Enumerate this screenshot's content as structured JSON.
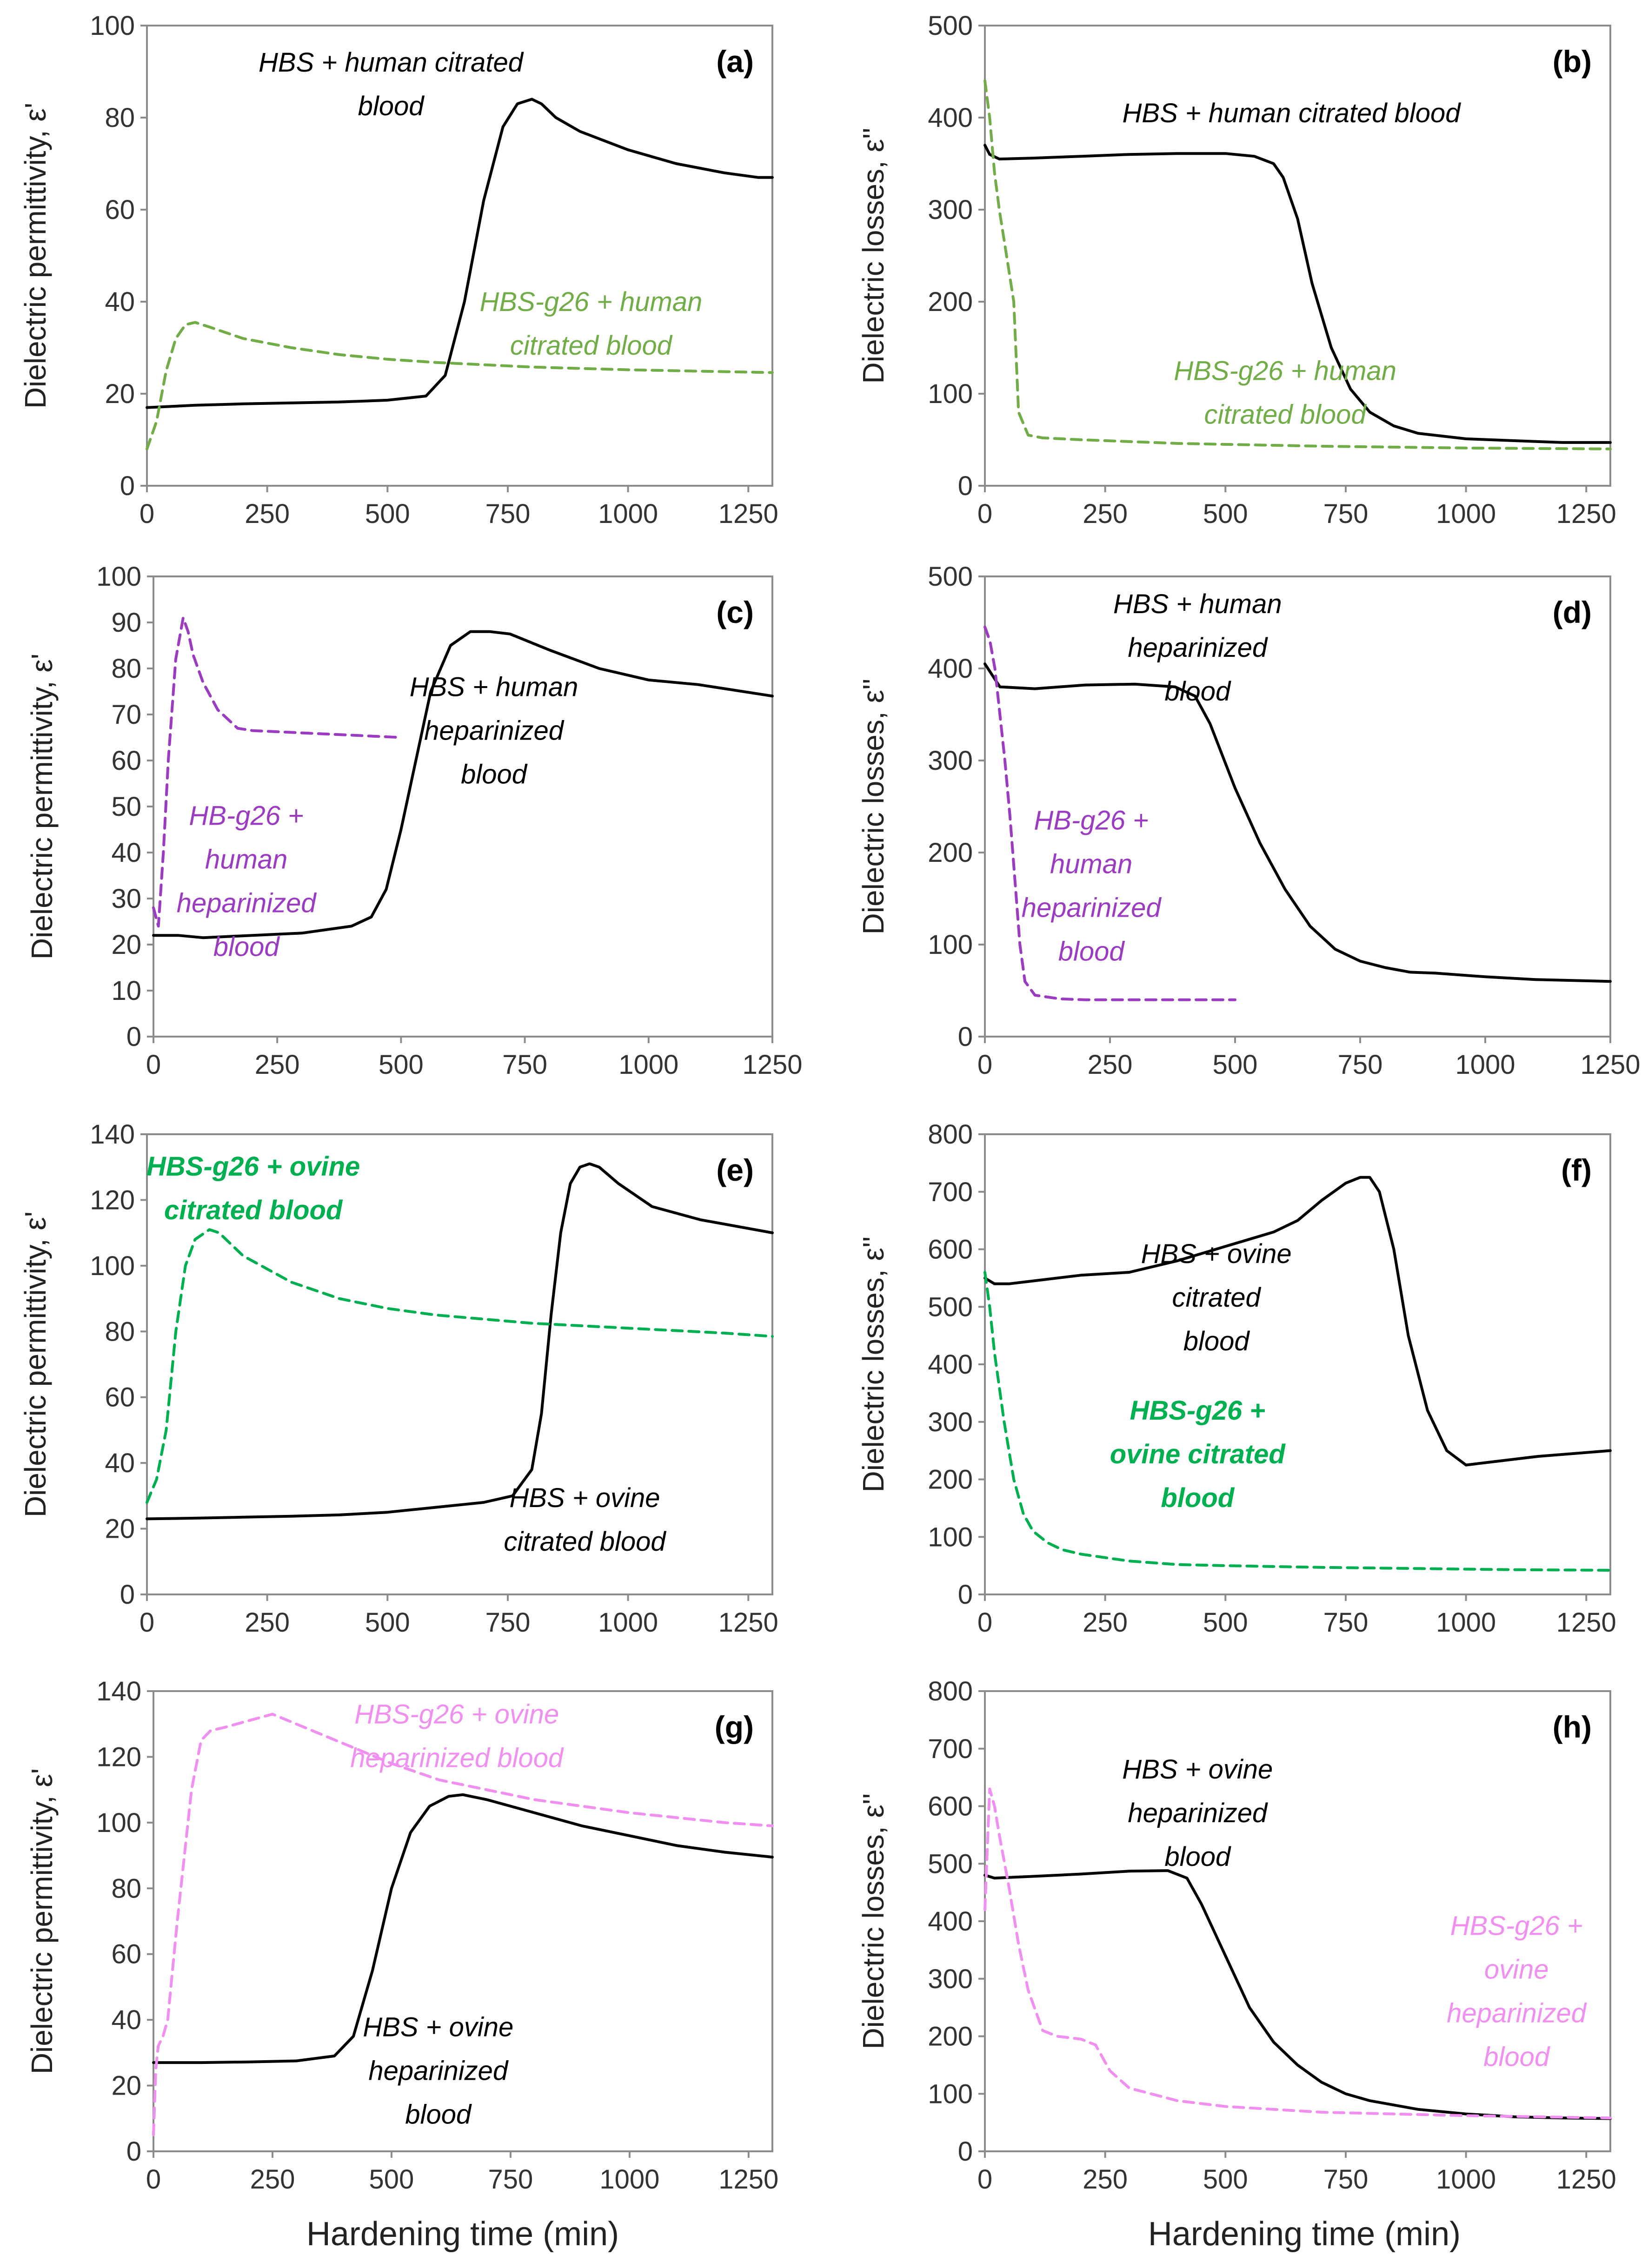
{
  "figure": {
    "xlabel_left": "Hardening time (min)",
    "xlabel_right": "Hardening time (min)"
  },
  "chart_data": [
    {
      "id": "a",
      "type": "line",
      "panel_label": "(a)",
      "ylabel": "Dielectric permittivity, ε'",
      "xlim": [
        0,
        1300
      ],
      "xticks": [
        0,
        250,
        500,
        750,
        1000,
        1250
      ],
      "ylim": [
        0,
        100
      ],
      "yticks": [
        0,
        20,
        40,
        60,
        80,
        100
      ],
      "series": [
        {
          "name": "HBS + human citrated blood",
          "color": "#000000",
          "dashed": false,
          "x": [
            0,
            100,
            200,
            300,
            400,
            500,
            580,
            620,
            660,
            700,
            740,
            770,
            800,
            820,
            850,
            900,
            1000,
            1100,
            1200,
            1270,
            1300
          ],
          "y": [
            17,
            17.5,
            17.8,
            18,
            18.2,
            18.6,
            19.5,
            24,
            40,
            62,
            78,
            83,
            84,
            83,
            80,
            77,
            73,
            70,
            68,
            67,
            67
          ]
        },
        {
          "name": "HBS-g26 + human citrated blood",
          "color": "#70ad47",
          "dashed": true,
          "x": [
            0,
            20,
            40,
            60,
            80,
            100,
            130,
            200,
            300,
            400,
            500,
            600,
            800,
            1000,
            1200,
            1300
          ],
          "y": [
            8,
            14,
            25,
            32,
            35,
            35.5,
            34.5,
            32,
            30,
            28.5,
            27.5,
            26.8,
            25.8,
            25.2,
            24.8,
            24.6
          ]
        }
      ],
      "annotations": [
        {
          "lines": [
            "HBS + human citrated",
            "blood"
          ],
          "color": "#000000"
        },
        {
          "lines": [
            "HBS-g26 + human",
            "citrated blood"
          ],
          "color": "#70ad47"
        }
      ]
    },
    {
      "id": "b",
      "type": "line",
      "panel_label": "(b)",
      "ylabel": "Dielectric losses, ε''",
      "xlim": [
        0,
        1300
      ],
      "xticks": [
        0,
        250,
        500,
        750,
        1000,
        1250
      ],
      "ylim": [
        0,
        500
      ],
      "yticks": [
        0,
        100,
        200,
        300,
        400,
        500
      ],
      "series": [
        {
          "name": "HBS + human citrated blood",
          "color": "#000000",
          "dashed": false,
          "x": [
            0,
            10,
            30,
            100,
            200,
            300,
            400,
            500,
            560,
            600,
            620,
            650,
            680,
            720,
            760,
            800,
            850,
            900,
            1000,
            1100,
            1200,
            1300
          ],
          "y": [
            370,
            360,
            355,
            356,
            358,
            360,
            361,
            361,
            358,
            350,
            335,
            290,
            220,
            150,
            105,
            80,
            65,
            57,
            51,
            49,
            47,
            47
          ]
        },
        {
          "name": "HBS-g26 + human citrated blood",
          "color": "#70ad47",
          "dashed": true,
          "x": [
            0,
            10,
            20,
            30,
            45,
            60,
            70,
            90,
            120,
            200,
            400,
            700,
            1000,
            1300
          ],
          "y": [
            440,
            400,
            340,
            300,
            250,
            200,
            80,
            55,
            52,
            50,
            46,
            43,
            41,
            40
          ]
        }
      ],
      "annotations": [
        {
          "lines": [
            "HBS + human citrated blood"
          ],
          "color": "#000000"
        },
        {
          "lines": [
            "HBS-g26 + human",
            "citrated blood"
          ],
          "color": "#70ad47"
        }
      ]
    },
    {
      "id": "c",
      "type": "line",
      "panel_label": "(c)",
      "ylabel": "Dielectric permittivity, ε'",
      "xlim": [
        0,
        1250
      ],
      "xticks": [
        0,
        250,
        500,
        750,
        1000,
        1250
      ],
      "ylim": [
        0,
        100
      ],
      "yticks": [
        0,
        10,
        20,
        30,
        40,
        50,
        60,
        70,
        80,
        90,
        100
      ],
      "series": [
        {
          "name": "HBS + human heparinized blood",
          "color": "#000000",
          "dashed": false,
          "x": [
            0,
            50,
            100,
            200,
            300,
            400,
            440,
            470,
            500,
            530,
            560,
            600,
            640,
            680,
            720,
            800,
            900,
            1000,
            1100,
            1250
          ],
          "y": [
            22,
            22,
            21.5,
            22,
            22.5,
            24,
            26,
            32,
            45,
            60,
            75,
            85,
            88,
            88,
            87.5,
            84,
            80,
            77.5,
            76.5,
            74
          ]
        },
        {
          "name": "HB-g26 + human heparinized blood",
          "color": "#9a3bc1",
          "dashed": true,
          "x": [
            0,
            10,
            20,
            30,
            45,
            60,
            70,
            80,
            100,
            130,
            170,
            200,
            300,
            400,
            500
          ],
          "y": [
            28,
            24,
            40,
            60,
            82,
            91,
            88,
            83,
            77,
            71,
            67,
            66.5,
            66,
            65.5,
            65
          ]
        }
      ],
      "annotations": [
        {
          "lines": [
            "HBS + human",
            "heparinized",
            "blood"
          ],
          "color": "#000000"
        },
        {
          "lines": [
            "HB-g26 +",
            "human",
            "heparinized",
            "blood"
          ],
          "color": "#9a3bc1"
        }
      ]
    },
    {
      "id": "d",
      "type": "line",
      "panel_label": "(d)",
      "ylabel": "Dielectric losses, ε''",
      "xlim": [
        0,
        1250
      ],
      "xticks": [
        0,
        250,
        500,
        750,
        1000,
        1250
      ],
      "ylim": [
        0,
        500
      ],
      "yticks": [
        0,
        100,
        200,
        300,
        400,
        500
      ],
      "series": [
        {
          "name": "HBS + human heparinized blood",
          "color": "#000000",
          "dashed": false,
          "x": [
            0,
            30,
            100,
            200,
            300,
            380,
            420,
            450,
            500,
            550,
            600,
            650,
            700,
            750,
            800,
            850,
            900,
            1000,
            1100,
            1250
          ],
          "y": [
            405,
            380,
            378,
            382,
            383,
            380,
            370,
            340,
            270,
            210,
            160,
            120,
            95,
            82,
            75,
            70,
            69,
            65,
            62,
            60
          ]
        },
        {
          "name": "HB-g26 + human heparinized blood",
          "color": "#9a3bc1",
          "dashed": true,
          "x": [
            0,
            10,
            20,
            30,
            40,
            50,
            60,
            70,
            80,
            100,
            150,
            200,
            300,
            400,
            500
          ],
          "y": [
            445,
            430,
            400,
            350,
            300,
            240,
            170,
            100,
            60,
            45,
            41,
            40,
            40,
            40,
            40
          ]
        }
      ],
      "annotations": [
        {
          "lines": [
            "HBS + human",
            "heparinized",
            "blood"
          ],
          "color": "#000000"
        },
        {
          "lines": [
            "HB-g26 +",
            "human",
            "heparinized",
            "blood"
          ],
          "color": "#9a3bc1"
        }
      ]
    },
    {
      "id": "e",
      "type": "line",
      "panel_label": "(e)",
      "ylabel": "Dielectric permittivity, ε'",
      "xlim": [
        0,
        1300
      ],
      "xticks": [
        0,
        250,
        500,
        750,
        1000,
        1250
      ],
      "ylim": [
        0,
        140
      ],
      "yticks": [
        0,
        20,
        40,
        60,
        80,
        100,
        120,
        140
      ],
      "series": [
        {
          "name": "HBS + ovine citrated blood",
          "color": "#000000",
          "dashed": false,
          "x": [
            0,
            100,
            200,
            300,
            400,
            500,
            600,
            700,
            760,
            800,
            820,
            840,
            860,
            880,
            900,
            920,
            940,
            980,
            1050,
            1150,
            1300
          ],
          "y": [
            23,
            23.2,
            23.5,
            23.8,
            24.2,
            25,
            26.5,
            28,
            30,
            38,
            55,
            85,
            110,
            125,
            130,
            131,
            130,
            125,
            118,
            114,
            110
          ]
        },
        {
          "name": "HBS-g26 + ovine citrated blood",
          "color": "#00b050",
          "dashed": true,
          "x": [
            0,
            20,
            40,
            60,
            80,
            100,
            130,
            150,
            200,
            300,
            400,
            500,
            600,
            800,
            1000,
            1200,
            1300
          ],
          "y": [
            28,
            35,
            50,
            80,
            100,
            108,
            111,
            110,
            103,
            95,
            90,
            87,
            85,
            82.5,
            81,
            79.5,
            78.5
          ]
        }
      ],
      "annotations": [
        {
          "lines": [
            "HBS-g26 + ovine",
            "citrated blood"
          ],
          "color": "#00b050"
        },
        {
          "lines": [
            "HBS + ovine",
            "citrated blood"
          ],
          "color": "#000000"
        }
      ]
    },
    {
      "id": "f",
      "type": "line",
      "panel_label": "(f)",
      "ylabel": "Dielectric losses, ε''",
      "xlim": [
        0,
        1300
      ],
      "xticks": [
        0,
        250,
        500,
        750,
        1000,
        1250
      ],
      "ylim": [
        0,
        800
      ],
      "yticks": [
        0,
        100,
        200,
        300,
        400,
        500,
        600,
        700,
        800
      ],
      "series": [
        {
          "name": "HBS + ovine citrated blood",
          "color": "#000000",
          "dashed": false,
          "x": [
            0,
            20,
            50,
            100,
            200,
            300,
            400,
            500,
            600,
            650,
            700,
            750,
            780,
            800,
            820,
            850,
            880,
            920,
            960,
            1000,
            1050,
            1150,
            1300
          ],
          "y": [
            550,
            540,
            540,
            545,
            555,
            560,
            580,
            605,
            630,
            650,
            685,
            715,
            725,
            725,
            700,
            600,
            450,
            320,
            250,
            225,
            230,
            240,
            250
          ]
        },
        {
          "name": "HBS-g26 + ovine citrated blood",
          "color": "#00b050",
          "dashed": true,
          "x": [
            0,
            10,
            20,
            40,
            60,
            80,
            100,
            130,
            160,
            200,
            300,
            400,
            500,
            700,
            900,
            1100,
            1300
          ],
          "y": [
            560,
            500,
            420,
            300,
            200,
            140,
            110,
            90,
            78,
            70,
            58,
            52,
            50,
            47,
            45,
            43,
            42
          ]
        }
      ],
      "annotations": [
        {
          "lines": [
            "HBS + ovine",
            "citrated",
            "blood"
          ],
          "color": "#000000"
        },
        {
          "lines": [
            "HBS-g26 +",
            "ovine citrated",
            "blood"
          ],
          "color": "#00b050"
        }
      ]
    },
    {
      "id": "g",
      "type": "line",
      "panel_label": "(g)",
      "ylabel": "Dielectric permittivity, ε'",
      "xlim": [
        0,
        1300
      ],
      "xticks": [
        0,
        250,
        500,
        750,
        1000,
        1250
      ],
      "ylim": [
        0,
        140
      ],
      "yticks": [
        0,
        20,
        40,
        60,
        80,
        100,
        120,
        140
      ],
      "series": [
        {
          "name": "HBS + ovine heparinized blood",
          "color": "#000000",
          "dashed": false,
          "x": [
            0,
            100,
            200,
            300,
            380,
            420,
            460,
            500,
            540,
            580,
            620,
            650,
            700,
            800,
            900,
            1000,
            1100,
            1200,
            1300
          ],
          "y": [
            27,
            27,
            27.2,
            27.5,
            29,
            35,
            55,
            80,
            97,
            105,
            108,
            108.5,
            107,
            103,
            99,
            96,
            93,
            91,
            89.5
          ]
        },
        {
          "name": "HBS-g26 + ovine heparinized blood",
          "color": "#f08ff0",
          "dashed": true,
          "x": [
            0,
            5,
            10,
            20,
            30,
            50,
            80,
            100,
            120,
            150,
            200,
            250,
            300,
            400,
            500,
            600,
            800,
            1000,
            1200,
            1300
          ],
          "y": [
            5,
            25,
            32,
            35,
            40,
            70,
            110,
            125,
            128,
            129,
            131,
            133,
            130,
            124,
            118,
            113,
            107,
            103,
            100,
            99
          ]
        }
      ],
      "annotations": [
        {
          "lines": [
            "HBS-g26 + ovine",
            "heparinized blood"
          ],
          "color": "#f08ff0"
        },
        {
          "lines": [
            "HBS + ovine",
            "heparinized",
            "blood"
          ],
          "color": "#000000"
        }
      ]
    },
    {
      "id": "h",
      "type": "line",
      "panel_label": "(h)",
      "ylabel": "Dielectric losses, ε''",
      "xlim": [
        0,
        1300
      ],
      "xticks": [
        0,
        250,
        500,
        750,
        1000,
        1250
      ],
      "ylim": [
        0,
        800
      ],
      "yticks": [
        0,
        100,
        200,
        300,
        400,
        500,
        600,
        700,
        800
      ],
      "series": [
        {
          "name": "HBS + ovine heparinized blood",
          "color": "#000000",
          "dashed": false,
          "x": [
            0,
            20,
            100,
            200,
            300,
            380,
            420,
            450,
            500,
            550,
            600,
            650,
            700,
            750,
            800,
            900,
            1000,
            1100,
            1200,
            1300
          ],
          "y": [
            480,
            475,
            478,
            482,
            487,
            488,
            475,
            430,
            340,
            250,
            190,
            150,
            120,
            100,
            88,
            73,
            65,
            60,
            58,
            57
          ]
        },
        {
          "name": "HBS-g26 + ovine heparinized blood",
          "color": "#f08ff0",
          "dashed": true,
          "x": [
            0,
            10,
            20,
            30,
            50,
            70,
            90,
            120,
            150,
            200,
            230,
            260,
            300,
            400,
            500,
            700,
            1000,
            1300
          ],
          "y": [
            420,
            630,
            600,
            550,
            460,
            360,
            280,
            210,
            200,
            195,
            185,
            140,
            110,
            88,
            78,
            68,
            62,
            58
          ]
        }
      ],
      "annotations": [
        {
          "lines": [
            "HBS + ovine",
            "heparinized",
            "blood"
          ],
          "color": "#000000"
        },
        {
          "lines": [
            "HBS-g26 +",
            "ovine",
            "heparinized",
            "blood"
          ],
          "color": "#f08ff0"
        }
      ]
    }
  ]
}
